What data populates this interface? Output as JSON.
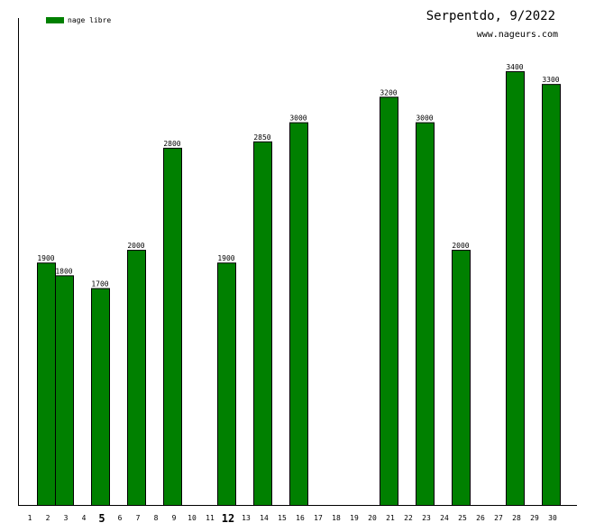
{
  "chart_data": {
    "type": "bar",
    "title": "Serpentdo, 9/2022",
    "subtitle": "www.nageurs.com",
    "x": [
      1,
      2,
      3,
      4,
      5,
      6,
      7,
      8,
      9,
      10,
      11,
      12,
      13,
      14,
      15,
      16,
      17,
      18,
      19,
      20,
      21,
      22,
      23,
      24,
      25,
      26,
      27,
      28,
      29,
      30
    ],
    "x_labels": [
      "1",
      "2",
      "3",
      "4",
      "5",
      "6",
      "7",
      "8",
      "9",
      "10",
      "11",
      "12",
      "13",
      "14",
      "15",
      "16",
      "17",
      "18",
      "19",
      "20",
      "21",
      "22",
      "23",
      "24",
      "25",
      "26",
      "27",
      "28",
      "29",
      "30"
    ],
    "highlighted_x": [
      5,
      12
    ],
    "series": [
      {
        "name": "nage libre",
        "color": "#008000",
        "values": [
          null,
          1900,
          1800,
          null,
          1700,
          null,
          2000,
          null,
          2800,
          null,
          null,
          1900,
          null,
          2850,
          null,
          3000,
          null,
          null,
          null,
          null,
          3200,
          null,
          3000,
          null,
          2000,
          null,
          null,
          3400,
          null,
          3300
        ]
      }
    ],
    "ylim": [
      0,
      3400
    ],
    "grid": false,
    "legend_position": "top-left"
  }
}
